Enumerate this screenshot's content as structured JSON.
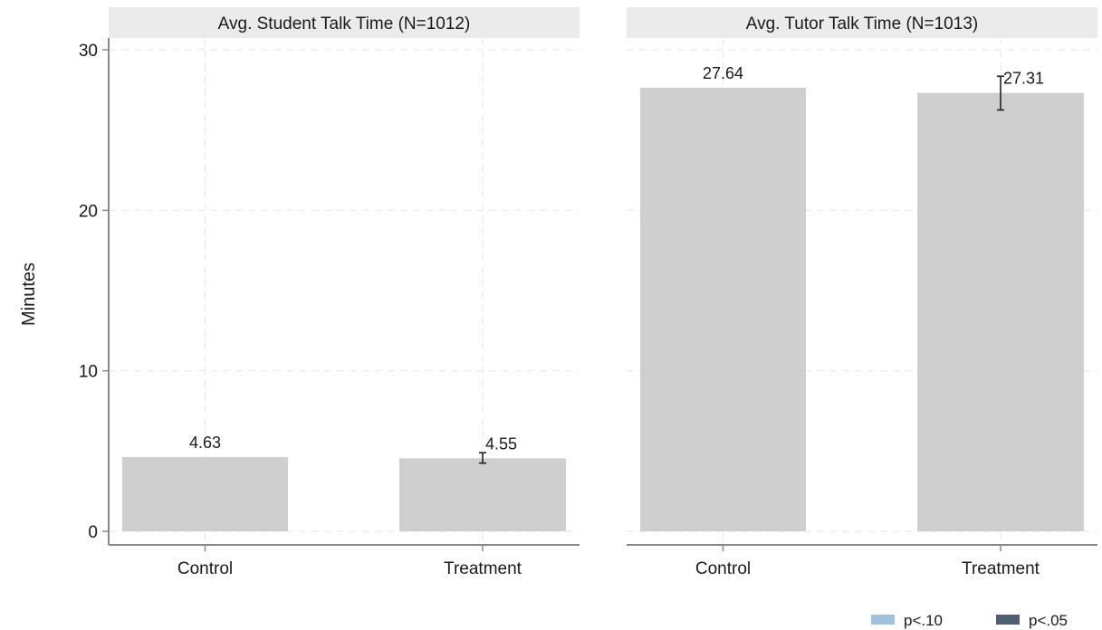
{
  "chart_data": {
    "type": "bar",
    "ylabel": "Minutes",
    "ylim": [
      0,
      30
    ],
    "yticks": [
      0,
      10,
      20,
      30
    ],
    "grid": true,
    "bar_color": "#cfcfcf",
    "facet_header_color": "#ebebeb",
    "legend": {
      "placement": "bottom-right",
      "items": [
        {
          "label": "p<.10",
          "color": "#9fc3dc"
        },
        {
          "label": "p<.05",
          "color": "#4d5f70"
        }
      ]
    },
    "panels": [
      {
        "title": "Avg. Student Talk Time (N=1012)",
        "categories": [
          "Control",
          "Treatment"
        ],
        "values": [
          4.63,
          4.55
        ],
        "value_labels": [
          "4.63",
          "4.55"
        ],
        "error_bars": [
          null,
          [
            4.25,
            4.9
          ]
        ]
      },
      {
        "title": "Avg. Tutor Talk Time (N=1013)",
        "categories": [
          "Control",
          "Treatment"
        ],
        "values": [
          27.64,
          27.31
        ],
        "value_labels": [
          "27.64",
          "27.31"
        ],
        "error_bars": [
          null,
          [
            26.25,
            28.35
          ]
        ]
      }
    ]
  }
}
